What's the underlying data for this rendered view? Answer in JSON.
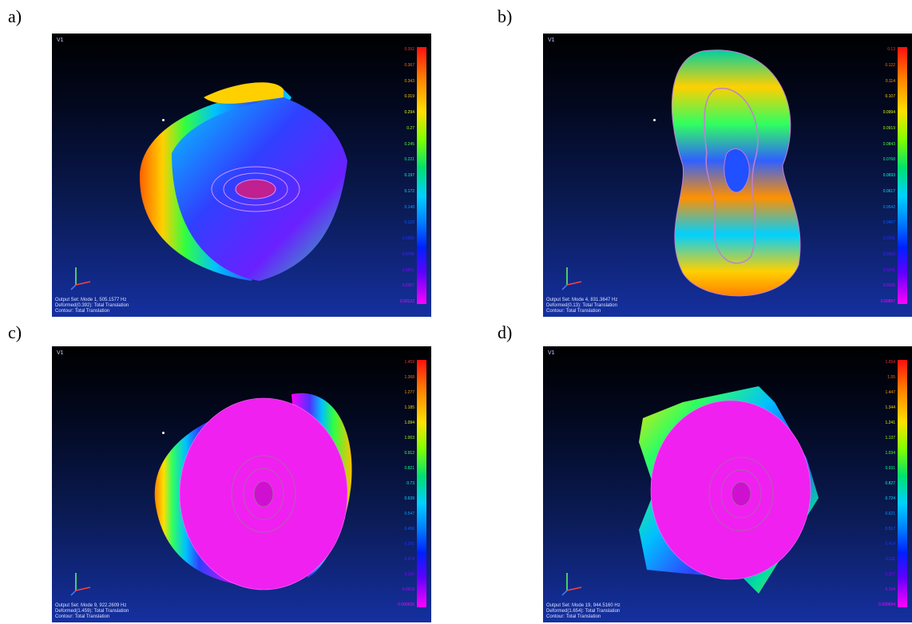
{
  "panels": [
    {
      "label": "a)",
      "view": "V1",
      "info": [
        "Output Set: Mode 1, 505.1577 Hz",
        "Deformed(0.392): Total Translation",
        "Contour: Total Translation"
      ],
      "scale": [
        "0.392",
        "0.367",
        "0.343",
        "0.319",
        "0.294",
        "0.27",
        "0.245",
        "0.221",
        "0.197",
        "0.172",
        "0.148",
        "0.123",
        "0.0989",
        "0.0745",
        "0.0501",
        "0.0257",
        "0.00122"
      ]
    },
    {
      "label": "b)",
      "view": "V1",
      "info": [
        "Output Set: Mode 4, 831.3647 Hz",
        "Deformed(0.13): Total Translation",
        "Contour: Total Translation"
      ],
      "scale": [
        "0.13",
        "0.122",
        "0.114",
        "0.107",
        "0.0994",
        "0.0919",
        "0.0843",
        "0.0768",
        "0.0693",
        "0.0617",
        "0.0542",
        "0.0467",
        "0.0391",
        "0.0316",
        "0.0241",
        "0.0165",
        "0.00897"
      ]
    },
    {
      "label": "c)",
      "view": "V1",
      "info": [
        "Output Set: Mode 9, 922.2609 Hz",
        "Deformed(1.459): Total Translation",
        "Contour: Total Translation"
      ],
      "scale": [
        "1.459",
        "1.368",
        "1.277",
        "1.185",
        "1.094",
        "1.003",
        "0.912",
        "0.821",
        "0.73",
        "0.639",
        "0.547",
        "0.456",
        "0.365",
        "0.274",
        "0.183",
        "0.0918",
        "0.000626"
      ]
    },
    {
      "label": "d)",
      "view": "V1",
      "info": [
        "Output Set: Mode 19, 944.5160 Hz",
        "Deformed(1.654): Total Translation",
        "Contour: Total Translation"
      ],
      "scale": [
        "1.654",
        "1.55",
        "1.447",
        "1.344",
        "1.241",
        "1.137",
        "1.034",
        "0.931",
        "0.827",
        "0.724",
        "0.621",
        "0.517",
        "0.414",
        "0.311",
        "0.207",
        "0.104",
        "0.000694"
      ]
    }
  ],
  "colors": {
    "tick_colors": [
      "#ff3030",
      "#ff6a00",
      "#ffa000",
      "#ffd000",
      "#e0ff00",
      "#a0ff00",
      "#50ff30",
      "#00ff80",
      "#00ffd0",
      "#00e0ff",
      "#00a0ff",
      "#0060ff",
      "#2030ff",
      "#5020ff",
      "#8000ff",
      "#c000ff",
      "#ff00ff"
    ]
  }
}
